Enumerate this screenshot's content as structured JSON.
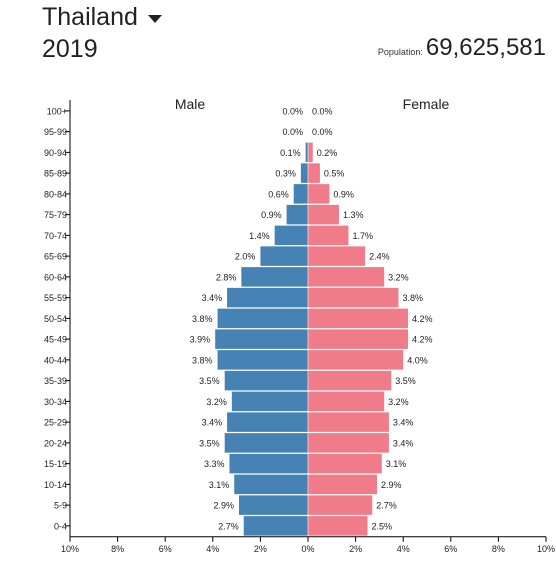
{
  "header": {
    "country": "Thailand",
    "year": "2019",
    "population_label": "Population:",
    "population_value": "69,625,581"
  },
  "colors": {
    "male": "#4682b4",
    "female": "#f07b89"
  },
  "icons": {
    "country_dropdown": "caret-down-icon"
  },
  "chart_data": {
    "type": "bar",
    "orientation": "horizontal",
    "categories": [
      "100+",
      "95-99",
      "90-94",
      "85-89",
      "80-84",
      "75-79",
      "70-74",
      "65-69",
      "60-64",
      "55-59",
      "50-54",
      "45-49",
      "40-44",
      "35-39",
      "30-34",
      "25-29",
      "20-24",
      "15-19",
      "10-14",
      "5-9",
      "0-4"
    ],
    "series": [
      {
        "name": "Male",
        "side": "left",
        "values": [
          0.0,
          0.0,
          0.1,
          0.3,
          0.6,
          0.9,
          1.4,
          2.0,
          2.8,
          3.4,
          3.8,
          3.9,
          3.8,
          3.5,
          3.2,
          3.4,
          3.5,
          3.3,
          3.1,
          2.9,
          2.7
        ],
        "labels": [
          "0.0%",
          "0.0%",
          "0.1%",
          "0.3%",
          "0.6%",
          "0.9%",
          "1.4%",
          "2.0%",
          "2.8%",
          "3.4%",
          "3.8%",
          "3.9%",
          "3.8%",
          "3.5%",
          "3.2%",
          "3.4%",
          "3.5%",
          "3.3%",
          "3.1%",
          "2.9%",
          "2.7%"
        ]
      },
      {
        "name": "Female",
        "side": "right",
        "values": [
          0.0,
          0.0,
          0.2,
          0.5,
          0.9,
          1.3,
          1.7,
          2.4,
          3.2,
          3.8,
          4.2,
          4.2,
          4.0,
          3.5,
          3.2,
          3.4,
          3.4,
          3.1,
          2.9,
          2.7,
          2.5
        ],
        "labels": [
          "0.0%",
          "0.0%",
          "0.2%",
          "0.5%",
          "0.9%",
          "1.3%",
          "1.7%",
          "2.4%",
          "3.2%",
          "3.8%",
          "4.2%",
          "4.2%",
          "4.0%",
          "3.5%",
          "3.2%",
          "3.4%",
          "3.4%",
          "3.1%",
          "2.9%",
          "2.7%",
          "2.5%"
        ]
      }
    ],
    "x_ticks": [
      "10%",
      "8%",
      "6%",
      "4%",
      "2%",
      "0%",
      "2%",
      "4%",
      "6%",
      "8%",
      "10%"
    ],
    "xlim": [
      -10,
      10
    ],
    "xlabel": "",
    "ylabel": "",
    "grid": false
  }
}
